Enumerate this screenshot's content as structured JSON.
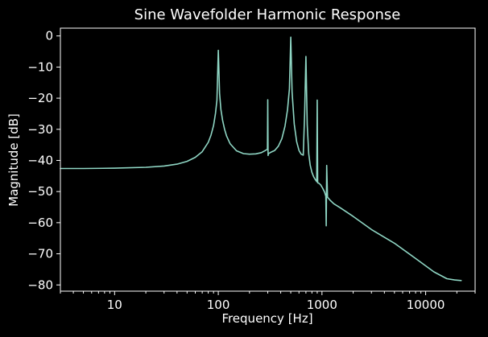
{
  "chart_data": {
    "type": "line",
    "title": "Sine Wavefolder Harmonic Response",
    "xlabel": "Frequency [Hz]",
    "ylabel": "Magnitude [dB]",
    "xscale": "log",
    "xlim": [
      3,
      30000
    ],
    "ylim": [
      -82,
      2.5
    ],
    "grid": false,
    "background": "#000000",
    "foreground": "#ffffff",
    "x_ticks": [
      10,
      100,
      1000,
      10000
    ],
    "x_tick_labels": [
      "10",
      "100",
      "1000",
      "10000"
    ],
    "y_ticks": [
      0,
      -10,
      -20,
      -30,
      -40,
      -50,
      -60,
      -70,
      -80
    ],
    "y_tick_labels": [
      "0",
      "−10",
      "−20",
      "−30",
      "−40",
      "−50",
      "−60",
      "−70",
      "−80"
    ],
    "series": [
      {
        "color": "#8fd6c4",
        "x": [
          3,
          5,
          10,
          20,
          30,
          40,
          50,
          60,
          70,
          80,
          85,
          90,
          94,
          97,
          100,
          103,
          106,
          110,
          115,
          120,
          130,
          150,
          175,
          200,
          230,
          260,
          285,
          298,
          300,
          302,
          305,
          320,
          350,
          380,
          410,
          440,
          465,
          485,
          500,
          515,
          540,
          570,
          600,
          630,
          660,
          680,
          700,
          720,
          745,
          770,
          800,
          830,
          860,
          890,
          900,
          910,
          930,
          970,
          1010,
          1060,
          1090,
          1100,
          1110,
          1130,
          1200,
          1300,
          1500,
          2000,
          3000,
          5000,
          8000,
          12000,
          16000,
          19000,
          22000
        ],
        "y": [
          -42.6,
          -42.6,
          -42.5,
          -42.2,
          -41.8,
          -41.2,
          -40.3,
          -39.0,
          -37.2,
          -34.2,
          -31.9,
          -28.8,
          -24.9,
          -20.6,
          -4.6,
          -18.5,
          -23.6,
          -27.1,
          -30.0,
          -32.1,
          -34.6,
          -36.9,
          -37.8,
          -38.0,
          -37.9,
          -37.5,
          -36.8,
          -36.4,
          -20.5,
          -38.4,
          -37.8,
          -37.4,
          -36.8,
          -35.4,
          -33.0,
          -29.0,
          -23.8,
          -17.0,
          -0.4,
          -18.0,
          -28.3,
          -34.0,
          -36.8,
          -38.0,
          -38.3,
          -25.0,
          -6.6,
          -28.5,
          -37.9,
          -41.5,
          -43.8,
          -45.2,
          -46.1,
          -46.8,
          -20.6,
          -47.2,
          -47.3,
          -47.8,
          -48.8,
          -50.2,
          -51.5,
          -61.0,
          -41.6,
          -51.8,
          -52.8,
          -53.9,
          -55.2,
          -58.0,
          -62.2,
          -66.6,
          -71.5,
          -75.8,
          -78.0,
          -78.4,
          -78.6
        ]
      }
    ]
  }
}
